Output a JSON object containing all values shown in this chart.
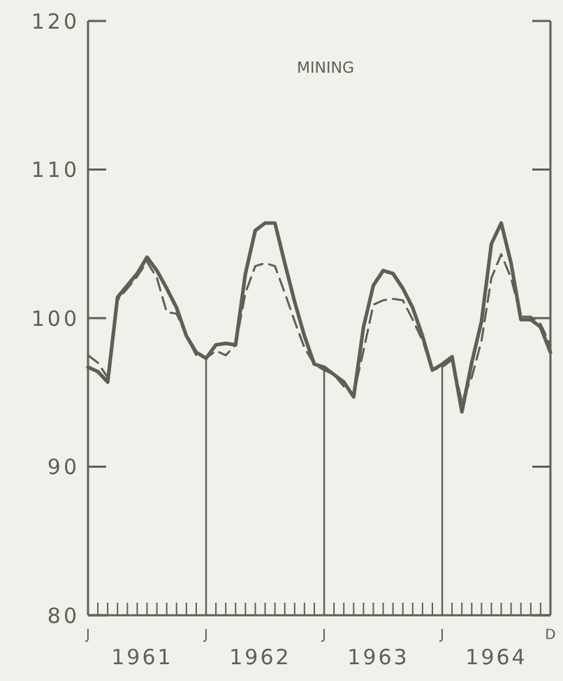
{
  "chart_data": {
    "type": "line",
    "title": "MINING",
    "categories": [
      "J",
      null,
      null,
      null,
      null,
      null,
      null,
      null,
      null,
      null,
      null,
      null,
      "J",
      null,
      null,
      null,
      null,
      null,
      null,
      null,
      null,
      null,
      null,
      null,
      "J",
      null,
      null,
      null,
      null,
      null,
      null,
      null,
      null,
      null,
      null,
      null,
      "J",
      null,
      null,
      null,
      null,
      null,
      null,
      null,
      null,
      null,
      null,
      "D"
    ],
    "annotations": [
      "1961",
      "1962",
      "1963",
      "1964"
    ],
    "series": [
      {
        "color": "#5f5f55",
        "line_style": "solid",
        "values": [
          96.7,
          96.4,
          95.7,
          101.4,
          102.2,
          103,
          104.1,
          103.2,
          102,
          100.7,
          98.8,
          97.7,
          97.3,
          98.2,
          98.3,
          98.2,
          103,
          105.9,
          106.4,
          106.4,
          103.7,
          101.1,
          98.8,
          96.9,
          96.7,
          96.2,
          95.7,
          94.7,
          99.4,
          102.2,
          103.2,
          103,
          102,
          100.7,
          98.8,
          96.5,
          96.9,
          97.4,
          93.7,
          97,
          99.8,
          105,
          106.4,
          103.7,
          99.9,
          99.9,
          99.4,
          97.7
        ]
      },
      {
        "color": "#5f5f55",
        "line_style": "dashed",
        "values": [
          97.5,
          97,
          96,
          101.2,
          102,
          102.8,
          103.8,
          102.7,
          100.4,
          100.3,
          98.8,
          97.5,
          97.3,
          97.8,
          97.5,
          98.2,
          101.7,
          103.5,
          103.7,
          103.5,
          101.7,
          99.8,
          98,
          96.9,
          96.5,
          96.2,
          95.4,
          94.9,
          97.8,
          100.9,
          101.2,
          101.3,
          101.2,
          99.9,
          98.5,
          96.5,
          96.7,
          97.2,
          94.4,
          96,
          98.5,
          102.7,
          104.3,
          102.7,
          100.1,
          100.1,
          99.6,
          98.2
        ]
      }
    ],
    "ylim": [
      80,
      120
    ],
    "yticks": [
      80,
      90,
      100,
      110,
      120
    ],
    "grid": false
  }
}
